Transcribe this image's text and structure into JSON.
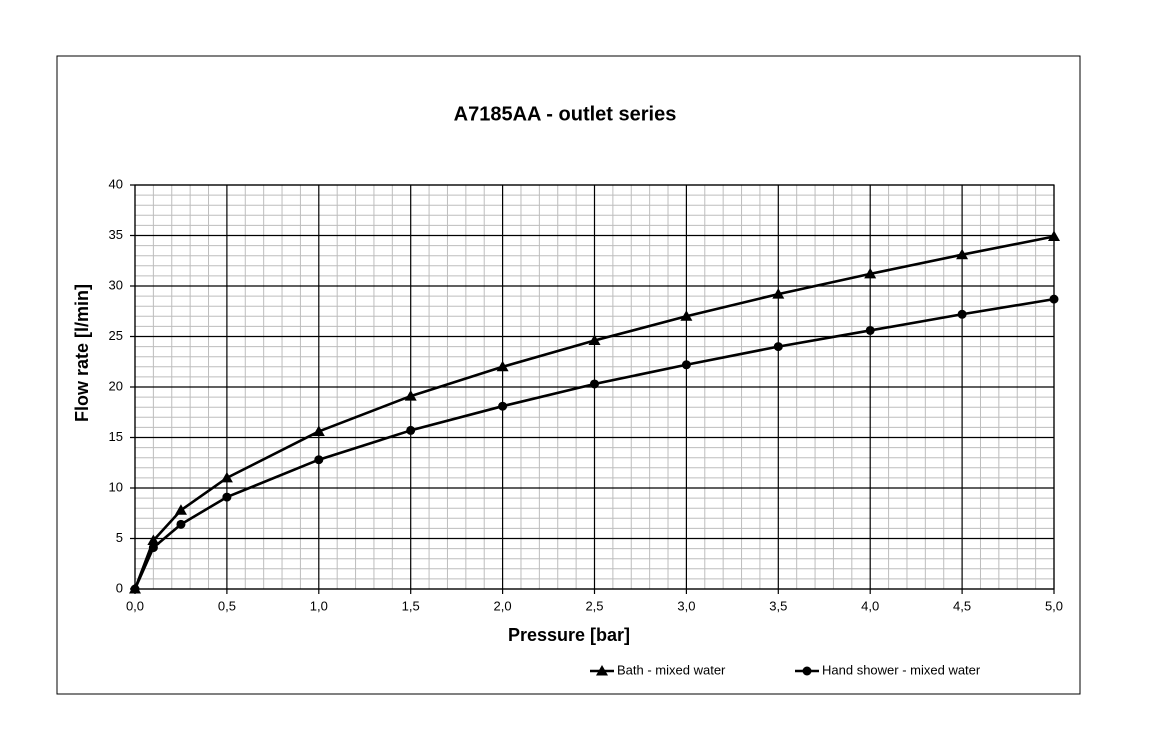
{
  "chart_data": {
    "type": "line",
    "title": "A7185AA - outlet series",
    "x_label": "Pressure [bar]",
    "y_label": "Flow rate [l/min]",
    "x": [
      0,
      0.1,
      0.25,
      0.5,
      1.0,
      1.5,
      2.0,
      2.5,
      3.0,
      3.5,
      4.0,
      4.5,
      5.0
    ],
    "series": [
      {
        "name": "Bath - mixed water",
        "color": "#000000",
        "marker": "triangle",
        "values": [
          0,
          4.8,
          7.8,
          11.0,
          15.6,
          19.1,
          22.0,
          24.6,
          27.0,
          29.2,
          31.2,
          33.1,
          34.9
        ]
      },
      {
        "name": "Hand shower - mixed water",
        "color": "#000000",
        "marker": "circle",
        "values": [
          0,
          4.1,
          6.4,
          9.1,
          12.8,
          15.7,
          18.1,
          20.3,
          22.2,
          24.0,
          25.6,
          27.2,
          28.7
        ]
      }
    ],
    "xlim": [
      0,
      5
    ],
    "xticks": [
      {
        "value": 0,
        "label": "0,0"
      },
      {
        "value": 0.5,
        "label": "0,5"
      },
      {
        "value": 1,
        "label": "1,0"
      },
      {
        "value": 1.5,
        "label": "1,5"
      },
      {
        "value": 2,
        "label": "2,0"
      },
      {
        "value": 2.5,
        "label": "2,5"
      },
      {
        "value": 3,
        "label": "3,0"
      },
      {
        "value": 3.5,
        "label": "3,5"
      },
      {
        "value": 4,
        "label": "4,0"
      },
      {
        "value": 4.5,
        "label": "4,5"
      },
      {
        "value": 5,
        "label": "5,0"
      }
    ],
    "ylim": [
      0,
      40
    ],
    "yticks": [
      0,
      5,
      10,
      15,
      20,
      25,
      30,
      35,
      40
    ],
    "grid": true,
    "legend": "bottom"
  }
}
